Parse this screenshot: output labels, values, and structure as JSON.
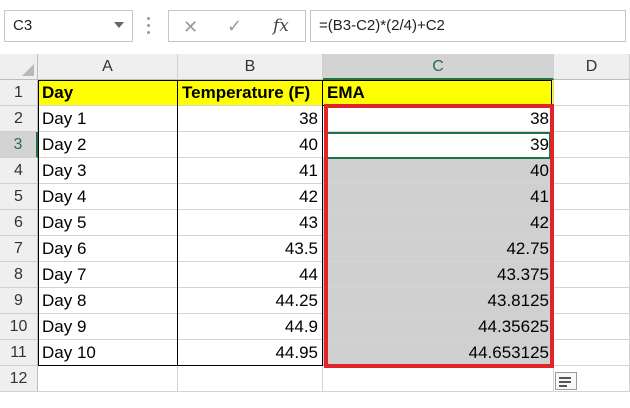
{
  "formula_bar": {
    "name_box": "C3",
    "formula": "=(B3-C2)*(2/4)+C2",
    "fx_label": "fx"
  },
  "columns": [
    "A",
    "B",
    "C",
    "D"
  ],
  "rows": [
    "1",
    "2",
    "3",
    "4",
    "5",
    "6",
    "7",
    "8",
    "9",
    "10",
    "11",
    "12"
  ],
  "header_row": {
    "a": "Day",
    "b": "Temperature (F)",
    "c": "EMA"
  },
  "data_rows": [
    {
      "day": "Day 1",
      "temp": "38",
      "ema": "38"
    },
    {
      "day": "Day 2",
      "temp": "40",
      "ema": "39"
    },
    {
      "day": "Day 3",
      "temp": "41",
      "ema": "40"
    },
    {
      "day": "Day 4",
      "temp": "42",
      "ema": "41"
    },
    {
      "day": "Day 5",
      "temp": "43",
      "ema": "42"
    },
    {
      "day": "Day 6",
      "temp": "43.5",
      "ema": "42.75"
    },
    {
      "day": "Day 7",
      "temp": "44",
      "ema": "43.375"
    },
    {
      "day": "Day 8",
      "temp": "44.25",
      "ema": "43.8125"
    },
    {
      "day": "Day 9",
      "temp": "44.9",
      "ema": "44.35625"
    },
    {
      "day": "Day 10",
      "temp": "44.95",
      "ema": "44.653125"
    }
  ],
  "colors": {
    "header_fill": "#ffff00",
    "highlight_border": "#e0252a",
    "selection": "#217346",
    "gray_fill": "#d0d0d0"
  }
}
